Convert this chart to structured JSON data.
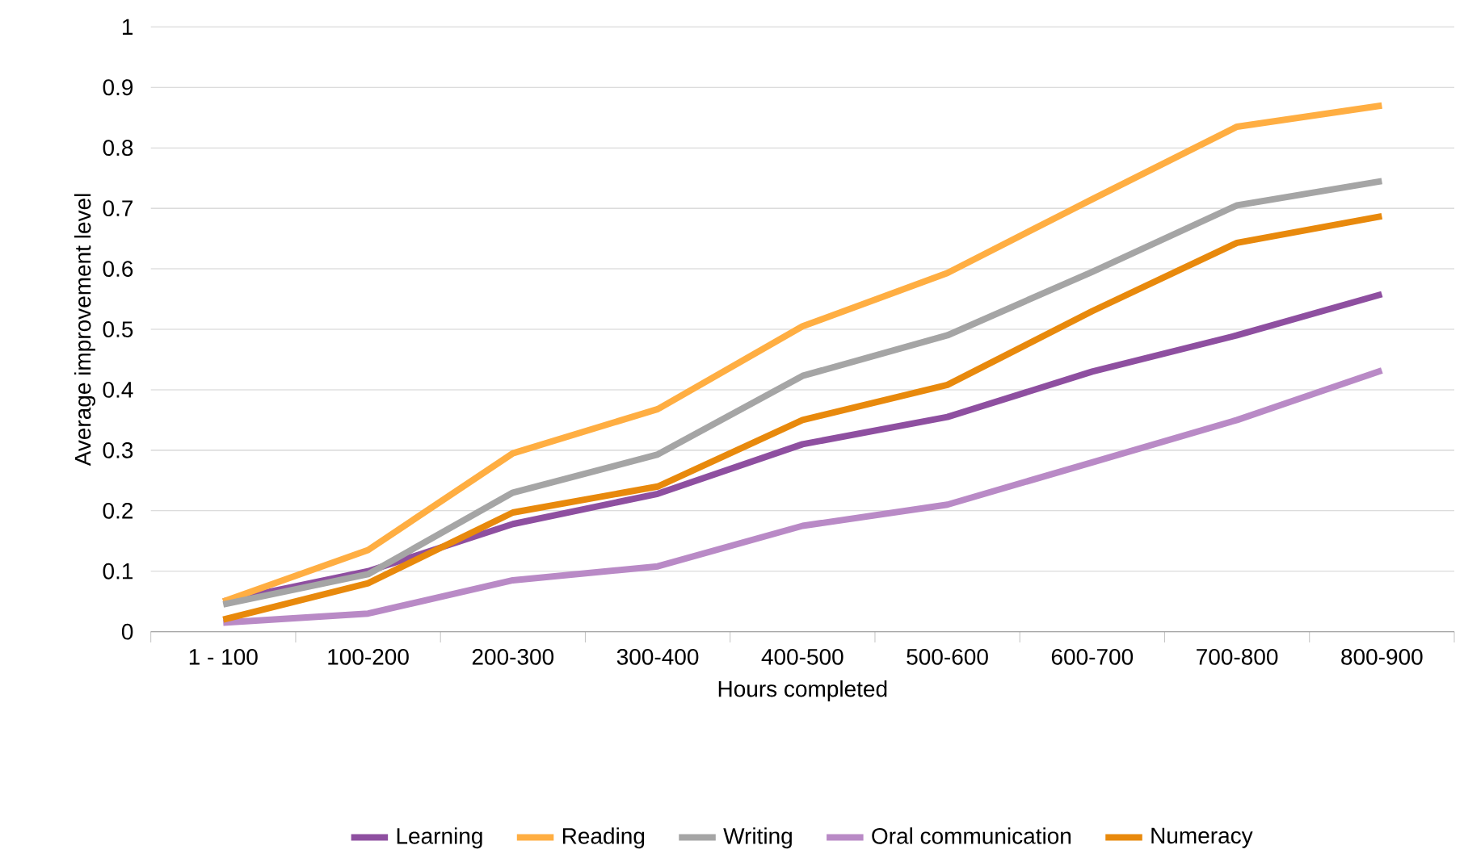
{
  "chart_data": {
    "type": "line",
    "xlabel": "Hours completed",
    "ylabel": "Average improvement level",
    "categories": [
      "1 - 100",
      "100-200",
      "200-300",
      "300-400",
      "400-500",
      "500-600",
      "600-700",
      "700-800",
      "800-900"
    ],
    "series": [
      {
        "name": "Learning",
        "color": "#8e4fa0",
        "values": [
          0.05,
          0.1,
          0.178,
          0.228,
          0.31,
          0.355,
          0.43,
          0.49,
          0.558
        ]
      },
      {
        "name": "Reading",
        "color": "#ffae42",
        "values": [
          0.05,
          0.135,
          0.295,
          0.368,
          0.505,
          0.593,
          0.715,
          0.835,
          0.87
        ]
      },
      {
        "name": "Writing",
        "color": "#a5a5a5",
        "values": [
          0.045,
          0.095,
          0.23,
          0.293,
          0.423,
          0.49,
          0.595,
          0.705,
          0.745
        ]
      },
      {
        "name": "Oral communication",
        "color": "#b98ac6",
        "values": [
          0.015,
          0.03,
          0.085,
          0.108,
          0.175,
          0.21,
          0.28,
          0.35,
          0.432
        ]
      },
      {
        "name": "Numeracy",
        "color": "#e8890c",
        "values": [
          0.02,
          0.08,
          0.197,
          0.24,
          0.35,
          0.408,
          0.53,
          0.643,
          0.687
        ]
      }
    ],
    "ylim": [
      0,
      1
    ],
    "yticks": [
      0,
      0.1,
      0.2,
      0.3,
      0.4,
      0.5,
      0.6,
      0.7,
      0.8,
      0.9,
      1
    ],
    "grid": "y",
    "legend": "bottom"
  }
}
